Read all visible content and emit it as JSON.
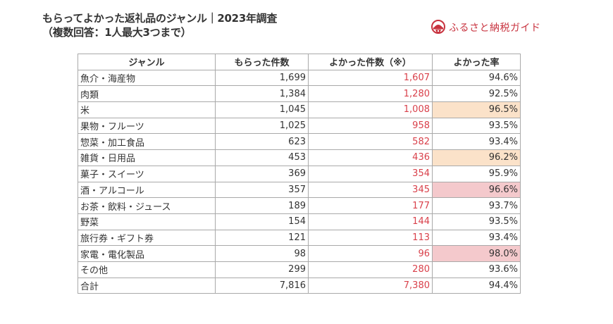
{
  "header": {
    "title": "もらってよかった返礼品のジャンル｜2023年調査",
    "subtitle": "（複数回答：1人最大3つまで）"
  },
  "logo": {
    "icon": "furusato-nouzei-logo-icon",
    "text": "ふるさと納税ガイド",
    "color": "#c8333f"
  },
  "table": {
    "columns": [
      "ジャンル",
      "もらった件数",
      "よかった件数（※）",
      "よかった率"
    ],
    "highlight_colors": {
      "orange": "#fbe2c9",
      "pink": "#f4c9cc"
    },
    "rows": [
      {
        "genre": "魚介・海産物",
        "received": "1,699",
        "good": "1,607",
        "rate": "94.6%",
        "highlight": ""
      },
      {
        "genre": "肉類",
        "received": "1,384",
        "good": "1,280",
        "rate": "92.5%",
        "highlight": ""
      },
      {
        "genre": "米",
        "received": "1,045",
        "good": "1,008",
        "rate": "96.5%",
        "highlight": "orange"
      },
      {
        "genre": "果物・フルーツ",
        "received": "1,025",
        "good": "958",
        "rate": "93.5%",
        "highlight": ""
      },
      {
        "genre": "惣菜・加工食品",
        "received": "623",
        "good": "582",
        "rate": "93.4%",
        "highlight": ""
      },
      {
        "genre": "雑貨・日用品",
        "received": "453",
        "good": "436",
        "rate": "96.2%",
        "highlight": "orange"
      },
      {
        "genre": "菓子・スイーツ",
        "received": "369",
        "good": "354",
        "rate": "95.9%",
        "highlight": ""
      },
      {
        "genre": "酒・アルコール",
        "received": "357",
        "good": "345",
        "rate": "96.6%",
        "highlight": "pink"
      },
      {
        "genre": "お茶・飲料・ジュース",
        "received": "189",
        "good": "177",
        "rate": "93.7%",
        "highlight": ""
      },
      {
        "genre": "野菜",
        "received": "154",
        "good": "144",
        "rate": "93.5%",
        "highlight": ""
      },
      {
        "genre": "旅行券・ギフト券",
        "received": "121",
        "good": "113",
        "rate": "93.4%",
        "highlight": ""
      },
      {
        "genre": "家電・電化製品",
        "received": "98",
        "good": "96",
        "rate": "98.0%",
        "highlight": "pink"
      },
      {
        "genre": "その他",
        "received": "299",
        "good": "280",
        "rate": "93.6%",
        "highlight": ""
      },
      {
        "genre": "合計",
        "received": "7,816",
        "good": "7,380",
        "rate": "94.4%",
        "highlight": ""
      }
    ]
  }
}
